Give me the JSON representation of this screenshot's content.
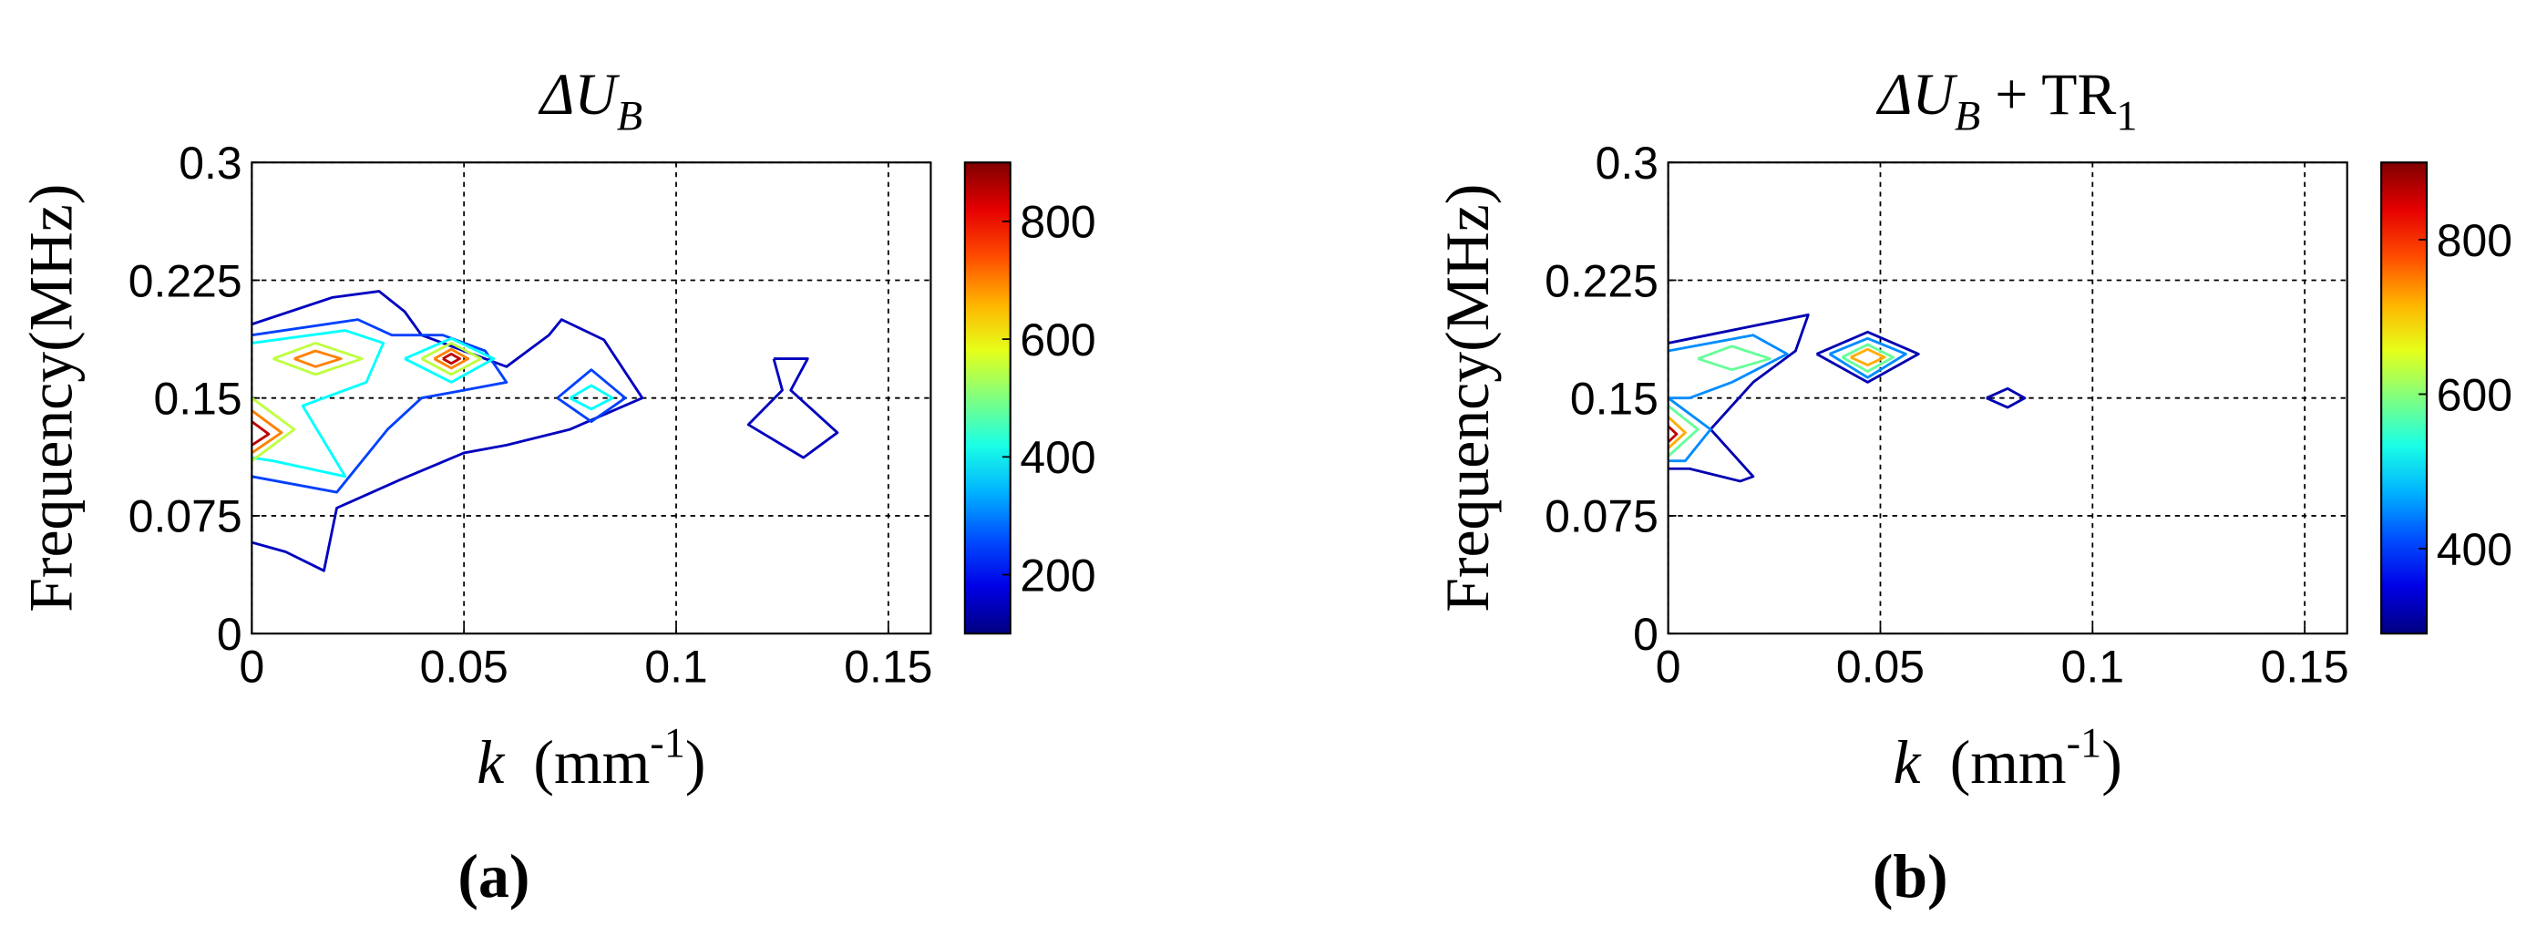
{
  "chart_data": [
    {
      "type": "contour",
      "title": "ΔU",
      "title_sub": "B",
      "ylabel": "Frequency(MHz)",
      "xlabel": "k",
      "xlabel_unit": "(mm",
      "xlabel_exp": "-1",
      "xlabel_end": ")",
      "panel_label": "(a)",
      "xlim": [
        0,
        0.16
      ],
      "ylim": [
        0,
        0.3
      ],
      "xticks": [
        0,
        0.05,
        0.1,
        0.15
      ],
      "yticks": [
        0,
        0.075,
        0.15,
        0.225,
        0.3
      ],
      "grid": true,
      "clim": [
        100,
        900
      ],
      "cticks": [
        200,
        400,
        600,
        800
      ],
      "colormap": "jet",
      "contours": [
        {
          "level": 150,
          "x": [
            0.123,
            0.131,
            0.127,
            0.138,
            0.13,
            0.117,
            0.125,
            0.123
          ],
          "y": [
            0.175,
            0.175,
            0.155,
            0.128,
            0.112,
            0.133,
            0.155,
            0.175
          ]
        },
        {
          "level": 150,
          "x": [
            0,
            0.019,
            0.03,
            0.036,
            0.04,
            0.06,
            0.07,
            0.073,
            0.083,
            0.092,
            0.075,
            0.06,
            0.05,
            0.035,
            0.02,
            0.017,
            0.008,
            0
          ],
          "y": [
            0.197,
            0.214,
            0.218,
            0.205,
            0.19,
            0.17,
            0.19,
            0.2,
            0.187,
            0.15,
            0.13,
            0.12,
            0.115,
            0.098,
            0.08,
            0.04,
            0.052,
            0.058
          ]
        },
        {
          "level": 250,
          "x": [
            0,
            0.025,
            0.033,
            0.045,
            0.055,
            0.06,
            0.05,
            0.04,
            0.032,
            0.02,
            0
          ],
          "y": [
            0.19,
            0.2,
            0.19,
            0.19,
            0.18,
            0.16,
            0.155,
            0.15,
            0.13,
            0.09,
            0.1
          ]
        },
        {
          "level": 250,
          "x": [
            0.072,
            0.08,
            0.088,
            0.08,
            0.072
          ],
          "y": [
            0.15,
            0.168,
            0.15,
            0.135,
            0.15
          ]
        },
        {
          "level": 400,
          "x": [
            0,
            0.022,
            0.031,
            0.027,
            0.012,
            0.022,
            0.005,
            0
          ],
          "y": [
            0.185,
            0.193,
            0.185,
            0.16,
            0.145,
            0.1,
            0.11,
            0.112
          ]
        },
        {
          "level": 400,
          "x": [
            0.036,
            0.047,
            0.057,
            0.047,
            0.036
          ],
          "y": [
            0.175,
            0.188,
            0.175,
            0.16,
            0.175
          ]
        },
        {
          "level": 400,
          "x": [
            0.075,
            0.08,
            0.085,
            0.08,
            0.075
          ],
          "y": [
            0.15,
            0.158,
            0.15,
            0.143,
            0.15
          ]
        },
        {
          "level": 550,
          "x": [
            0.005,
            0.015,
            0.026,
            0.015,
            0.005
          ],
          "y": [
            0.175,
            0.185,
            0.175,
            0.165,
            0.175
          ]
        },
        {
          "level": 550,
          "x": [
            0.04,
            0.047,
            0.054,
            0.047,
            0.04
          ],
          "y": [
            0.175,
            0.185,
            0.175,
            0.165,
            0.175
          ]
        },
        {
          "level": 550,
          "x": [
            0,
            0.01,
            0
          ],
          "y": [
            0.15,
            0.13,
            0.11
          ]
        },
        {
          "level": 700,
          "x": [
            0.01,
            0.015,
            0.021,
            0.015,
            0.01
          ],
          "y": [
            0.175,
            0.18,
            0.175,
            0.17,
            0.175
          ]
        },
        {
          "level": 700,
          "x": [
            0.043,
            0.047,
            0.051,
            0.047,
            0.043
          ],
          "y": [
            0.175,
            0.181,
            0.175,
            0.169,
            0.175
          ]
        },
        {
          "level": 700,
          "x": [
            0,
            0.007,
            0
          ],
          "y": [
            0.142,
            0.128,
            0.115
          ]
        },
        {
          "level": 850,
          "x": [
            0.045,
            0.047,
            0.049,
            0.047,
            0.045
          ],
          "y": [
            0.175,
            0.178,
            0.175,
            0.172,
            0.175
          ]
        },
        {
          "level": 850,
          "x": [
            0,
            0.004,
            0
          ],
          "y": [
            0.135,
            0.127,
            0.12
          ]
        }
      ]
    },
    {
      "type": "contour",
      "title": "ΔU",
      "title_sub": "B",
      "title_extra": " + TR",
      "title_extra_sub": "1",
      "ylabel": "Frequency(MHz)",
      "xlabel": "k",
      "xlabel_unit": "(mm",
      "xlabel_exp": "-1",
      "xlabel_end": ")",
      "panel_label": "(b)",
      "xlim": [
        0,
        0.16
      ],
      "ylim": [
        0,
        0.3
      ],
      "xticks": [
        0,
        0.05,
        0.1,
        0.15
      ],
      "yticks": [
        0,
        0.075,
        0.15,
        0.225,
        0.3
      ],
      "grid": true,
      "clim": [
        290,
        900
      ],
      "cticks": [
        400,
        600,
        800
      ],
      "colormap": "jet",
      "contours": [
        {
          "level": 320,
          "x": [
            0,
            0.033,
            0.03,
            0.02,
            0.01,
            0.02,
            0.017,
            0.005,
            0
          ],
          "y": [
            0.185,
            0.203,
            0.18,
            0.16,
            0.13,
            0.1,
            0.097,
            0.105,
            0.105
          ]
        },
        {
          "level": 320,
          "x": [
            0.035,
            0.047,
            0.059,
            0.047,
            0.035
          ],
          "y": [
            0.178,
            0.192,
            0.178,
            0.16,
            0.178
          ]
        },
        {
          "level": 320,
          "x": [
            0.075,
            0.08,
            0.084,
            0.08,
            0.075
          ],
          "y": [
            0.15,
            0.156,
            0.15,
            0.144,
            0.15
          ]
        },
        {
          "level": 450,
          "x": [
            0,
            0.02,
            0.028,
            0.015,
            0.005,
            0
          ],
          "y": [
            0.18,
            0.19,
            0.178,
            0.16,
            0.15,
            0.15
          ]
        },
        {
          "level": 450,
          "x": [
            0.038,
            0.047,
            0.056,
            0.047,
            0.038
          ],
          "y": [
            0.178,
            0.188,
            0.178,
            0.163,
            0.178
          ]
        },
        {
          "level": 450,
          "x": [
            0,
            0.01,
            0.004,
            0
          ],
          "y": [
            0.15,
            0.13,
            0.11,
            0.11
          ]
        },
        {
          "level": 580,
          "x": [
            0.007,
            0.015,
            0.024,
            0.015,
            0.007
          ],
          "y": [
            0.175,
            0.183,
            0.175,
            0.168,
            0.175
          ]
        },
        {
          "level": 580,
          "x": [
            0.041,
            0.047,
            0.053,
            0.047,
            0.041
          ],
          "y": [
            0.176,
            0.184,
            0.176,
            0.167,
            0.176
          ]
        },
        {
          "level": 580,
          "x": [
            0,
            0.007,
            0
          ],
          "y": [
            0.145,
            0.13,
            0.113
          ]
        },
        {
          "level": 720,
          "x": [
            0.043,
            0.047,
            0.051,
            0.047,
            0.043
          ],
          "y": [
            0.176,
            0.181,
            0.176,
            0.171,
            0.176
          ]
        },
        {
          "level": 720,
          "x": [
            0,
            0.004,
            0
          ],
          "y": [
            0.138,
            0.128,
            0.118
          ]
        },
        {
          "level": 860,
          "x": [
            0,
            0.002,
            0
          ],
          "y": [
            0.132,
            0.127,
            0.122
          ]
        }
      ]
    }
  ]
}
